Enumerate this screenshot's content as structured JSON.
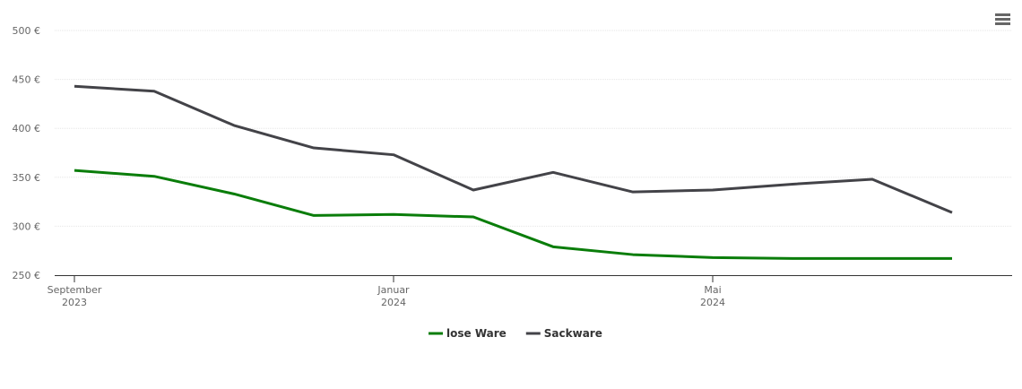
{
  "chart_data": {
    "type": "line",
    "x": [
      "2023-09",
      "2023-10",
      "2023-11",
      "2023-12",
      "2024-01",
      "2024-02",
      "2024-03",
      "2024-04",
      "2024-05",
      "2024-06",
      "2024-07",
      "2024-08"
    ],
    "xticks": [
      {
        "value": "2023-09",
        "label": "September 2023"
      },
      {
        "value": "2024-01",
        "label": "Januar 2024"
      },
      {
        "value": "2024-05",
        "label": "Mai 2024"
      }
    ],
    "ylim": [
      250,
      500
    ],
    "yticks": [
      {
        "value": 250,
        "label": "250 €"
      },
      {
        "value": 300,
        "label": "300 €"
      },
      {
        "value": 350,
        "label": "350 €"
      },
      {
        "value": 400,
        "label": "400 €"
      },
      {
        "value": 450,
        "label": "450 €"
      },
      {
        "value": 500,
        "label": "500 €"
      }
    ],
    "grid": true,
    "series": [
      {
        "name": "lose Ware",
        "color": "#0a7d0a",
        "values": [
          357,
          351,
          333,
          311,
          312,
          309.5,
          279,
          271,
          268,
          267,
          267,
          267
        ]
      },
      {
        "name": "Sackware",
        "color": "#434348",
        "values": [
          443,
          438,
          403,
          380,
          373,
          337,
          355,
          335,
          337,
          343,
          348,
          314
        ]
      }
    ]
  }
}
